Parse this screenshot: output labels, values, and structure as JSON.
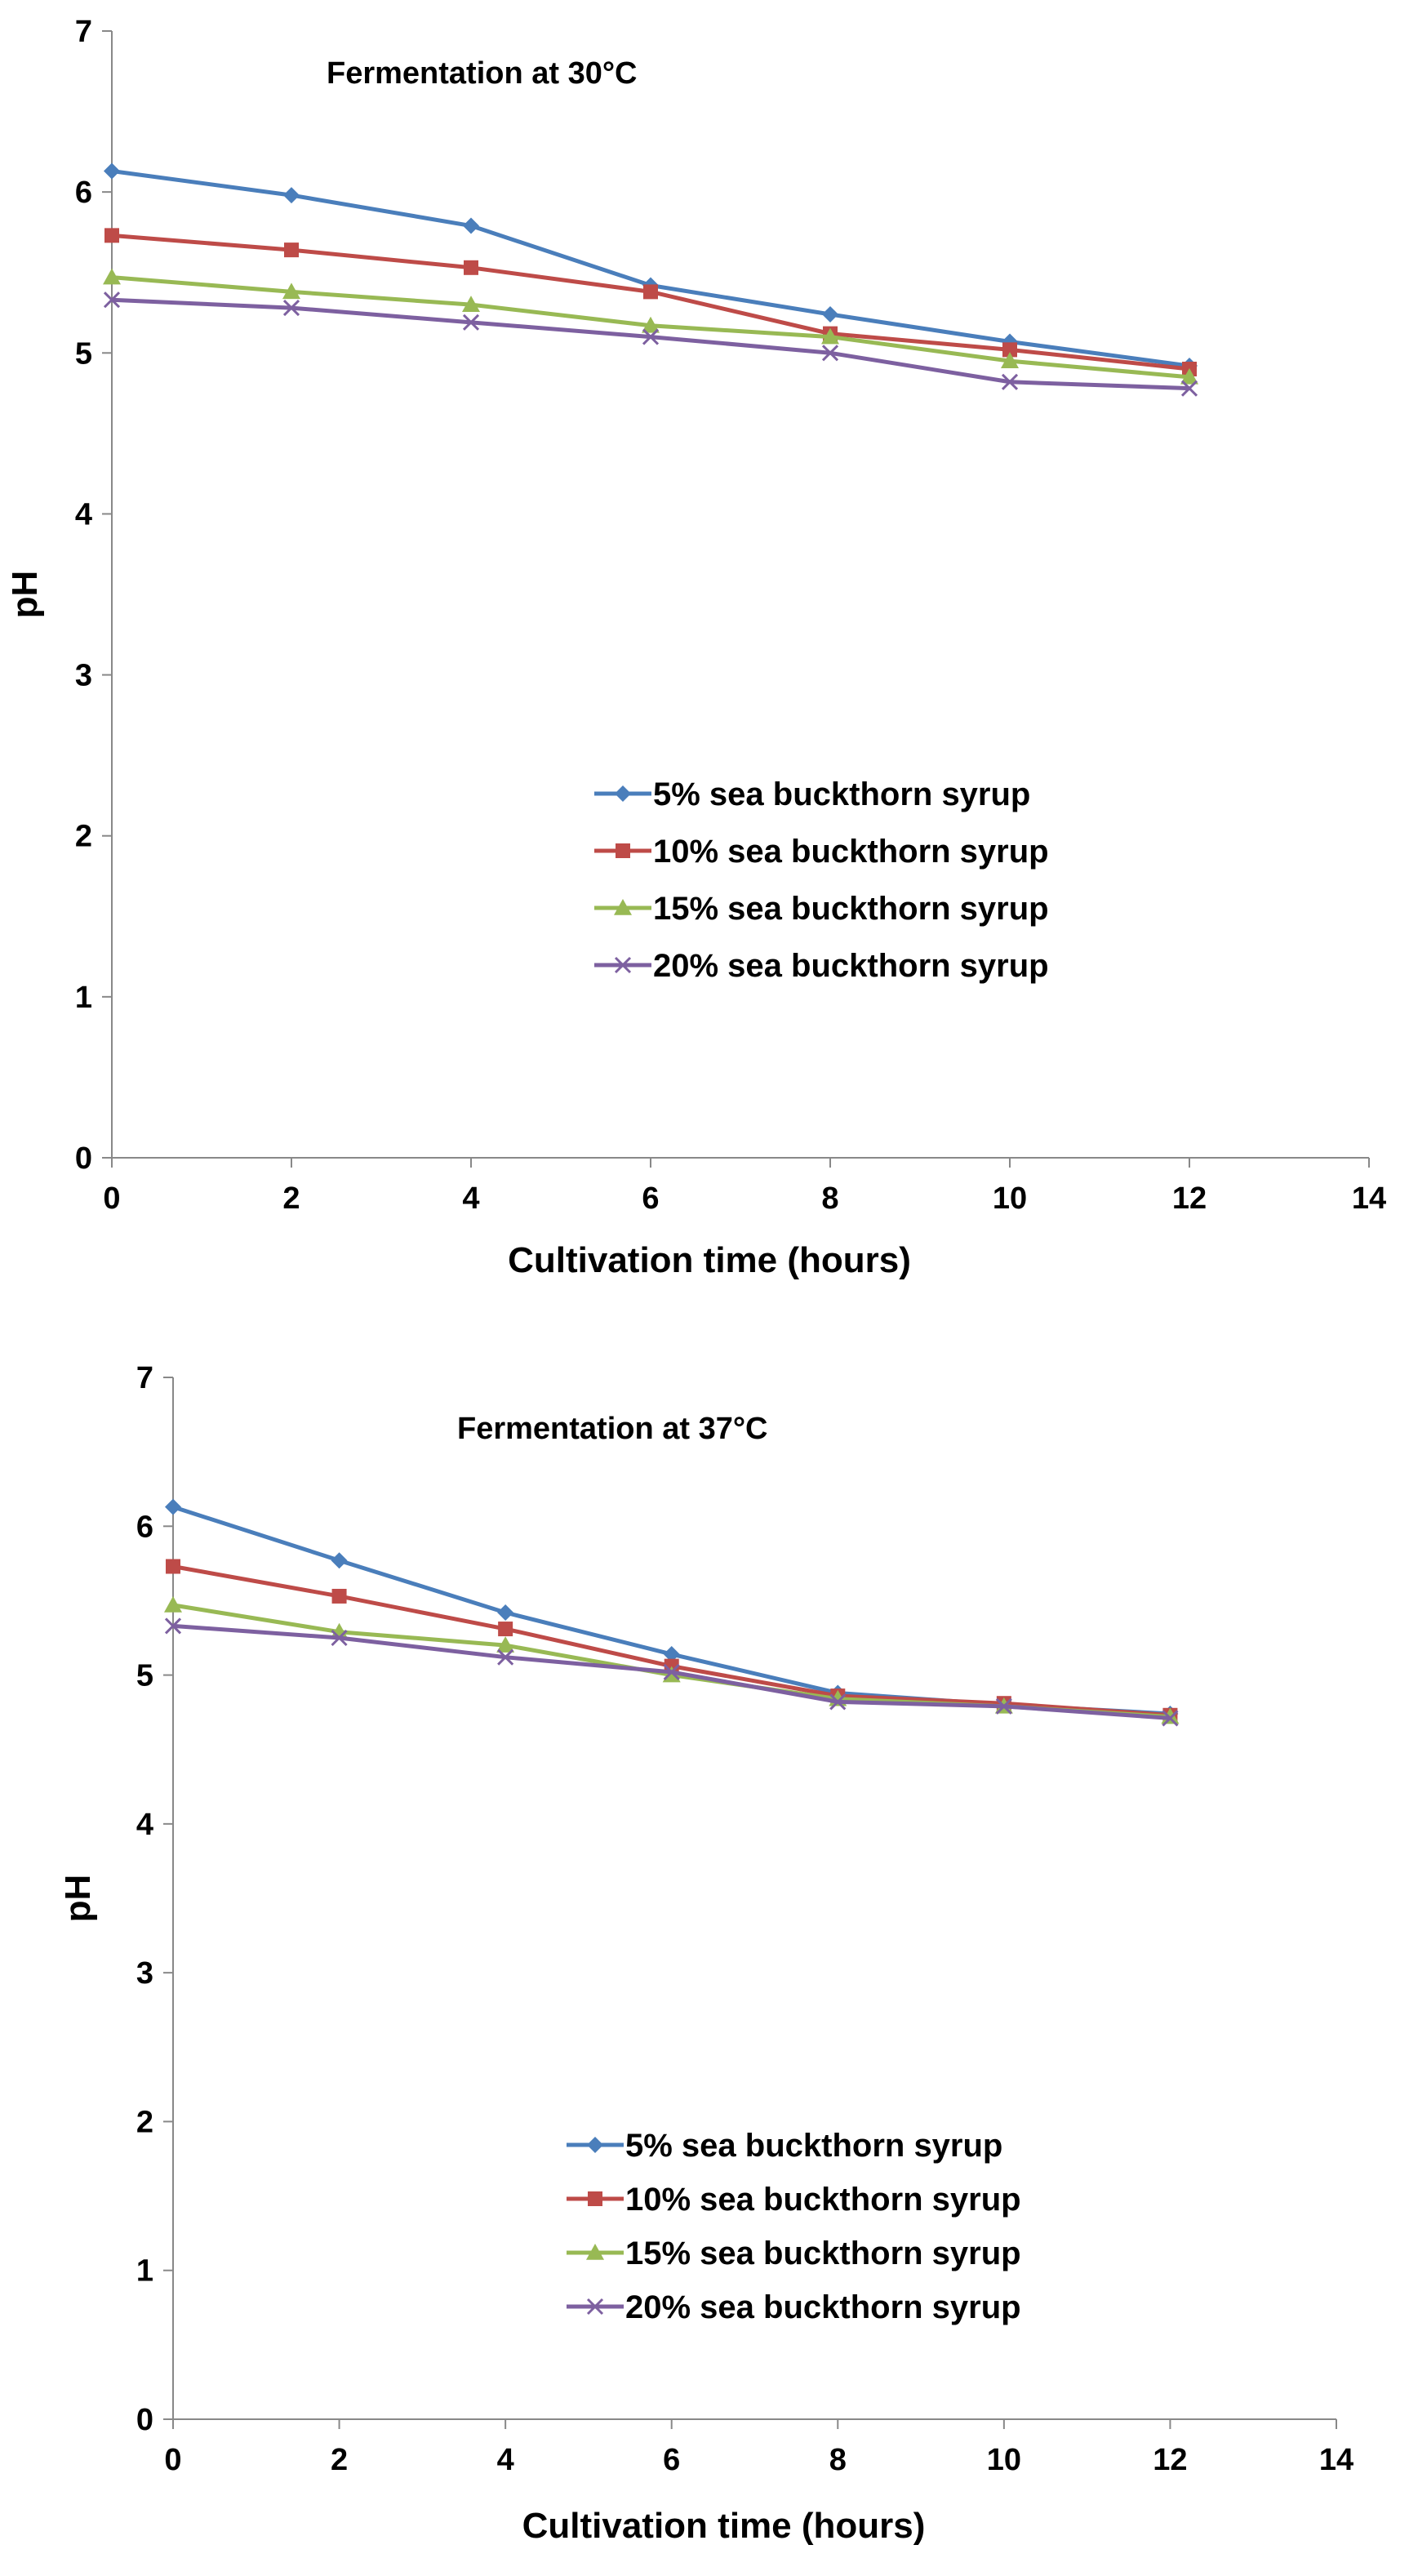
{
  "chart_data": [
    {
      "type": "line",
      "title": "Fermentation at 30°C",
      "xlabel": "Cultivation time (hours)",
      "ylabel": "pH",
      "xlim": [
        0,
        14
      ],
      "ylim": [
        0,
        7
      ],
      "xticks": [
        0,
        2,
        4,
        6,
        8,
        10,
        12,
        14
      ],
      "yticks": [
        0,
        1,
        2,
        3,
        4,
        5,
        6,
        7
      ],
      "grid": false,
      "legend_position": "center-right",
      "x": [
        0,
        2,
        4,
        6,
        8,
        10,
        12
      ],
      "series": [
        {
          "name": "5% sea buckthorn syrup",
          "color": "#4a7ebb",
          "marker": "diamond",
          "values": [
            6.13,
            5.98,
            5.79,
            5.42,
            5.24,
            5.07,
            4.92
          ]
        },
        {
          "name": "10% sea buckthorn syrup",
          "color": "#be4b48",
          "marker": "square",
          "values": [
            5.73,
            5.64,
            5.53,
            5.38,
            5.12,
            5.02,
            4.9
          ]
        },
        {
          "name": "15% sea buckthorn syrup",
          "color": "#98b954",
          "marker": "triangle",
          "values": [
            5.47,
            5.38,
            5.3,
            5.17,
            5.1,
            4.95,
            4.85
          ]
        },
        {
          "name": "20% sea buckthorn syrup",
          "color": "#7d60a0",
          "marker": "x",
          "values": [
            5.33,
            5.28,
            5.19,
            5.1,
            5.0,
            4.82,
            4.78
          ]
        }
      ]
    },
    {
      "type": "line",
      "title": "Fermentation at 37°C",
      "xlabel": "Cultivation time (hours)",
      "ylabel": "pH",
      "xlim": [
        0,
        14
      ],
      "ylim": [
        0,
        7
      ],
      "xticks": [
        0,
        2,
        4,
        6,
        8,
        10,
        12,
        14
      ],
      "yticks": [
        0,
        1,
        2,
        3,
        4,
        5,
        6,
        7
      ],
      "grid": false,
      "legend_position": "bottom-center",
      "x": [
        0,
        2,
        4,
        6,
        8,
        10,
        12
      ],
      "series": [
        {
          "name": "5% sea buckthorn syrup",
          "color": "#4a7ebb",
          "marker": "diamond",
          "values": [
            6.13,
            5.77,
            5.42,
            5.14,
            4.88,
            4.8,
            4.74
          ]
        },
        {
          "name": "10% sea buckthorn syrup",
          "color": "#be4b48",
          "marker": "square",
          "values": [
            5.73,
            5.53,
            5.31,
            5.06,
            4.86,
            4.81,
            4.73
          ]
        },
        {
          "name": "15% sea buckthorn syrup",
          "color": "#98b954",
          "marker": "triangle",
          "values": [
            5.47,
            5.29,
            5.2,
            5.0,
            4.84,
            4.79,
            4.72
          ]
        },
        {
          "name": "20% sea buckthorn syrup",
          "color": "#7d60a0",
          "marker": "x",
          "values": [
            5.33,
            5.25,
            5.12,
            5.02,
            4.82,
            4.79,
            4.71
          ]
        }
      ]
    }
  ]
}
